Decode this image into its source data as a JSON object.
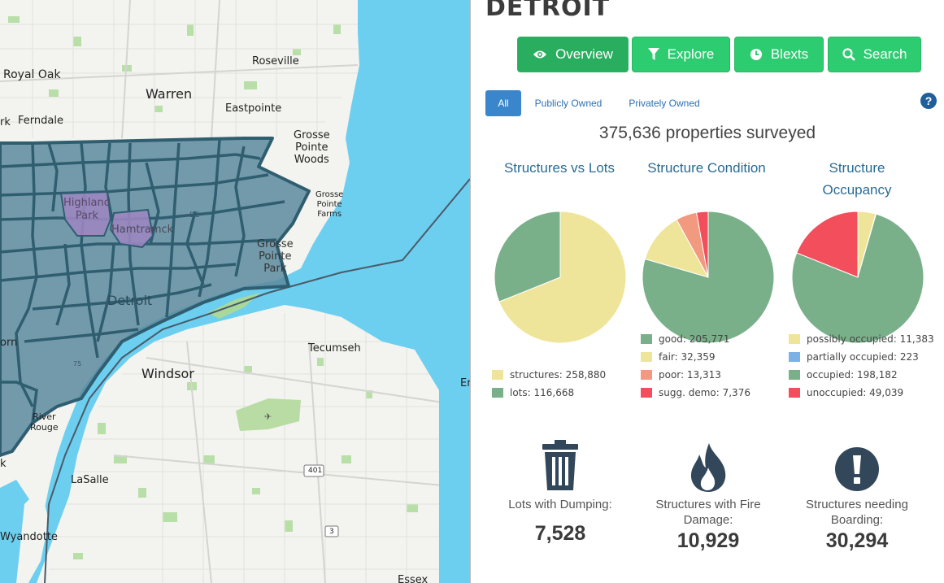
{
  "map": {
    "labels": {
      "royal_oak": "Royal Oak",
      "warren": "Warren",
      "roseville": "Roseville",
      "eastpointe": "Eastpointe",
      "ferndale": "Ferndale",
      "ferndale_prefix": "rk",
      "grosse_pointe_woods": [
        "Grosse",
        "Pointe",
        "Woods"
      ],
      "grosse_pointe_farms": [
        "Grosse",
        "Pointe",
        "Farms"
      ],
      "grosse_pointe_park": [
        "Grosse",
        "Pointe",
        "Park"
      ],
      "highland_park": [
        "Highland",
        "Park"
      ],
      "hamtramck": "Hamtramck",
      "detroit": "Detroit",
      "de": "DE",
      "windsor": "Windsor",
      "tecumseh": "Tecumseh",
      "er": "Er",
      "orn": "orn",
      "river_rouge": [
        "River",
        "Rouge"
      ],
      "k": "k",
      "lasalle": "LaSalle",
      "wyandotte": "Wyandotte",
      "essex": "Essex",
      "hwy_401": "401",
      "hwy_3": "3",
      "hwy_75": "75"
    }
  },
  "panel": {
    "city_title": "DETROIT",
    "nav": [
      {
        "label": "Overview",
        "icon": "eye-icon"
      },
      {
        "label": "Explore",
        "icon": "filter-icon"
      },
      {
        "label": "Blexts",
        "icon": "clock-icon"
      },
      {
        "label": "Search",
        "icon": "search-icon"
      }
    ],
    "filters": [
      {
        "label": "All"
      },
      {
        "label": "Publicly Owned"
      },
      {
        "label": "Privately Owned"
      }
    ],
    "help_label": "?",
    "summary": "375,636 properties surveyed",
    "stats": [
      {
        "label_lines": [
          "Lots with Dumping:"
        ],
        "value": "7,528",
        "icon": "trash-icon"
      },
      {
        "label_lines": [
          "Structures with Fire",
          "Damage:"
        ],
        "value": "10,929",
        "icon": "fire-icon"
      },
      {
        "label_lines": [
          "Structures needing",
          "Boarding:"
        ],
        "value": "30,294",
        "icon": "exclamation-icon"
      }
    ]
  },
  "colors": {
    "green": "#79b08a",
    "yellow": "#efe59a",
    "salmon": "#f19a80",
    "red": "#f24e5c",
    "blue": "#7cb1e6",
    "nav_green": "#2ecc71",
    "water": "#6ccfef",
    "district": "#5c8a9e"
  },
  "chart_data": [
    {
      "type": "pie",
      "title": "Structures vs Lots",
      "labels": [
        "structures",
        "lots"
      ],
      "values": [
        258880,
        116668
      ],
      "value_labels": [
        "258,880",
        "116,668"
      ],
      "colors": [
        "#efe59a",
        "#79b08a"
      ]
    },
    {
      "type": "pie",
      "title": "Structure Condition",
      "labels": [
        "good",
        "fair",
        "poor",
        "sugg. demo"
      ],
      "values": [
        205771,
        32359,
        13313,
        7376
      ],
      "value_labels": [
        "205,771",
        "32,359",
        "13,313",
        "7,376"
      ],
      "colors": [
        "#79b08a",
        "#efe59a",
        "#f19a80",
        "#f24e5c"
      ]
    },
    {
      "type": "pie",
      "title": "Structure Occupancy",
      "labels": [
        "possibly occupied",
        "partially occupied",
        "occupied",
        "unoccupied"
      ],
      "values": [
        11383,
        223,
        198182,
        49039
      ],
      "value_labels": [
        "11,383",
        "223",
        "198,182",
        "49,039"
      ],
      "colors": [
        "#efe59a",
        "#7cb1e6",
        "#79b08a",
        "#f24e5c"
      ]
    }
  ]
}
